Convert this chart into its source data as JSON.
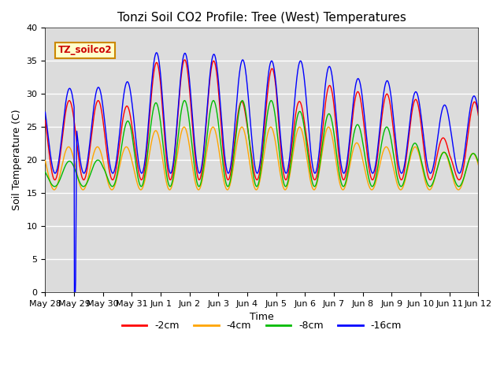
{
  "title": "Tonzi Soil CO2 Profile: Tree (West) Temperatures",
  "xlabel": "Time",
  "ylabel": "Soil Temperature (C)",
  "ylim": [
    0,
    40
  ],
  "colors": {
    "-2cm": "#FF0000",
    "-4cm": "#FFA500",
    "-8cm": "#00BB00",
    "-16cm": "#0000FF"
  },
  "legend_label": "TZ_soilco2",
  "tick_labels": [
    "May 28",
    "May 29",
    "May 30",
    "May 31",
    "Jun 1",
    "Jun 2",
    "Jun 3",
    "Jun 4",
    "Jun 5",
    "Jun 6",
    "Jun 7",
    "Jun 8",
    "Jun 9",
    "Jun 10",
    "Jun 11",
    "Jun 12"
  ],
  "background_color": "#DCDCDC",
  "title_fontsize": 11,
  "axis_label_fontsize": 9
}
